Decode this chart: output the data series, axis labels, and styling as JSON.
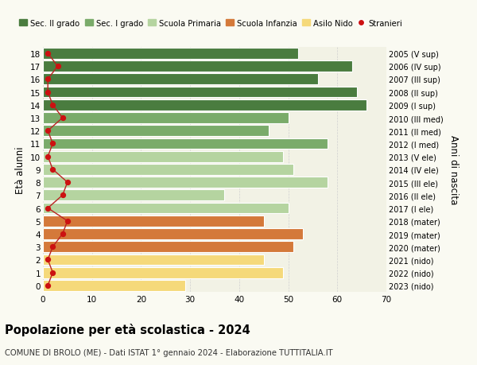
{
  "ages": [
    0,
    1,
    2,
    3,
    4,
    5,
    6,
    7,
    8,
    9,
    10,
    11,
    12,
    13,
    14,
    15,
    16,
    17,
    18
  ],
  "years": [
    "2023 (nido)",
    "2022 (nido)",
    "2021 (nido)",
    "2020 (mater)",
    "2019 (mater)",
    "2018 (mater)",
    "2017 (I ele)",
    "2016 (II ele)",
    "2015 (III ele)",
    "2014 (IV ele)",
    "2013 (V ele)",
    "2012 (I med)",
    "2011 (II med)",
    "2010 (III med)",
    "2009 (I sup)",
    "2008 (II sup)",
    "2007 (III sup)",
    "2006 (IV sup)",
    "2005 (V sup)"
  ],
  "bar_values": [
    29,
    49,
    45,
    51,
    53,
    45,
    50,
    37,
    58,
    51,
    49,
    58,
    46,
    50,
    66,
    64,
    56,
    63,
    52
  ],
  "bar_colors": [
    "#f5d97a",
    "#f5d97a",
    "#f5d97a",
    "#d4793a",
    "#d4793a",
    "#d4793a",
    "#b5d4a0",
    "#b5d4a0",
    "#b5d4a0",
    "#b5d4a0",
    "#b5d4a0",
    "#7aab6a",
    "#7aab6a",
    "#7aab6a",
    "#4a7c3f",
    "#4a7c3f",
    "#4a7c3f",
    "#4a7c3f",
    "#4a7c3f"
  ],
  "stranieri_values": [
    1,
    2,
    1,
    2,
    4,
    5,
    1,
    4,
    5,
    2,
    1,
    2,
    1,
    4,
    2,
    1,
    1,
    3,
    1
  ],
  "legend_labels": [
    "Sec. II grado",
    "Sec. I grado",
    "Scuola Primaria",
    "Scuola Infanzia",
    "Asilo Nido",
    "Stranieri"
  ],
  "legend_colors": [
    "#4a7c3f",
    "#7aab6a",
    "#b5d4a0",
    "#d4793a",
    "#f5d97a",
    "#cc1111"
  ],
  "ylabel_label": "Età alunni",
  "ylabel2_label": "Anni di nascita",
  "title": "Popolazione per età scolastica - 2024",
  "subtitle": "COMUNE DI BROLO (ME) - Dati ISTAT 1° gennaio 2024 - Elaborazione TUTTITALIA.IT",
  "xlim": [
    0,
    70
  ],
  "background_color": "#fafaf2",
  "bar_background": "#f2f2e5",
  "grid_color": "#d0d0d0",
  "stranieri_color": "#cc1111",
  "stranieri_line_color": "#bb2222"
}
